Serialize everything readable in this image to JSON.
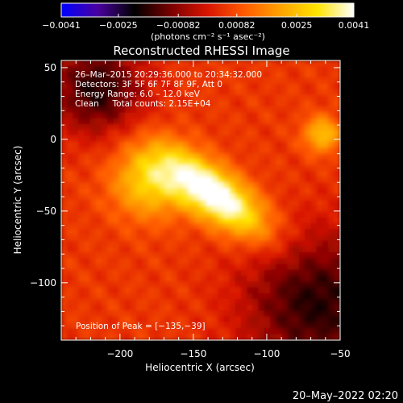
{
  "colorbar": {
    "ticks": [
      "-0.0041",
      "-0.0025",
      "-0.00082",
      "0.00082",
      "0.0025",
      "0.0041"
    ],
    "tick_values": [
      -0.0041,
      -0.0025,
      -0.00082,
      0.00082,
      0.0025,
      0.0041
    ],
    "unit_label": "(photons cm⁻² s⁻¹ asec⁻²)",
    "range": [
      -0.0041,
      0.0041
    ],
    "colors": [
      "#0000ff",
      "#4a00a0",
      "#000000",
      "#7a0000",
      "#d81500",
      "#ff5a00",
      "#ffa300",
      "#ffe400",
      "#ffffff"
    ]
  },
  "chart_data": {
    "type": "heatmap",
    "title": "Reconstructed RHESSI Image",
    "xlabel": "Heliocentric X (arcsec)",
    "ylabel": "Heliocentric Y (arcsec)",
    "xlim": [
      -240,
      -50
    ],
    "ylim": [
      -140,
      55
    ],
    "x_ticks": [
      -200,
      -150,
      -100,
      -50
    ],
    "x_tick_labels": [
      "−200",
      "−150",
      "−100",
      "−50"
    ],
    "y_ticks": [
      50,
      0,
      -50,
      -100
    ],
    "y_tick_labels": [
      "50",
      "0",
      "−50",
      "−100"
    ],
    "annotations": [
      "26–Mar–2015 20:29:36.000 to 20:34:32.000",
      "Detectors: 3F 5F 6F 7F 8F 9F, Att 0",
      "Energy Range: 6.0 – 12.0 keV",
      "Clean     Total counts: 2.15E+04"
    ],
    "peak_label": "Position of Peak = [−135,−39]",
    "peak": [
      -135,
      -39
    ],
    "value_range": [
      -0.0041,
      0.0041
    ]
  },
  "footer": {
    "date": "20–May–2022 02:20"
  }
}
